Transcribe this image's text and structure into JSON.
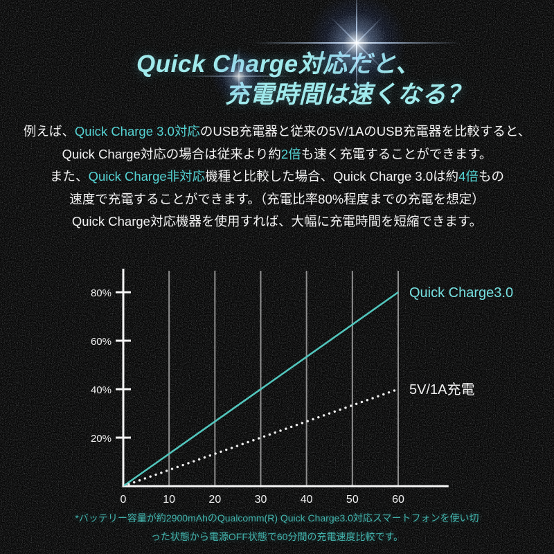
{
  "title": {
    "line1": "Quick Charge対応だと、",
    "line2": "充電時間は速くなる？",
    "color": "#a0eaec"
  },
  "body": {
    "text_color": "#f2f2f2",
    "accent_color": "#55d4d4",
    "lines": [
      [
        {
          "text": "例えば、",
          "accent": false
        },
        {
          "text": "Quick Charge 3.0対応",
          "accent": true
        },
        {
          "text": "のUSB充電器と従来の5V/1AのUSB充電器を比較すると、",
          "accent": false
        }
      ],
      [
        {
          "text": "Quick Charge対応の場合は従来より約",
          "accent": false
        },
        {
          "text": "2倍",
          "accent": true
        },
        {
          "text": "も速く充電することができます。",
          "accent": false
        }
      ],
      [
        {
          "text": "また、",
          "accent": false
        },
        {
          "text": "Quick Charge非対応",
          "accent": true
        },
        {
          "text": "機種と比較した場合、Quick Charge 3.0は約",
          "accent": false
        },
        {
          "text": "4倍",
          "accent": true
        },
        {
          "text": "もの",
          "accent": false
        }
      ],
      [
        {
          "text": "速度で充電することができます。（充電比率80%程度までの充電を想定）",
          "accent": false
        }
      ],
      [
        {
          "text": "Quick Charge対応機器を使用すれば、大幅に充電時間を短縮できます。",
          "accent": false
        }
      ]
    ]
  },
  "chart_data": {
    "type": "line",
    "title": "",
    "xlabel": "",
    "ylabel": "",
    "x_ticks": [
      0,
      10,
      20,
      30,
      40,
      50,
      60
    ],
    "y_ticks": [
      20,
      40,
      60,
      80
    ],
    "y_tick_suffix": "%",
    "xlim": [
      0,
      71
    ],
    "ylim": [
      0,
      88
    ],
    "grid": "vertical-only",
    "legend_position": "at-line-ends",
    "axis_color": "#f5f5f5",
    "grid_color": "#8f8f8f",
    "tick_label_color": "#f0f0f0",
    "series": [
      {
        "name": "Quick Charge3.0",
        "points": [
          [
            0,
            0
          ],
          [
            60,
            80
          ]
        ],
        "line_style": "solid",
        "color": "#52c6bd",
        "label_color": "#76e0e0"
      },
      {
        "name": "5V/1A充電",
        "points": [
          [
            0,
            0
          ],
          [
            60,
            40
          ]
        ],
        "line_style": "dotted",
        "color": "#ededed",
        "label_color": "#f0f0f0"
      }
    ]
  },
  "footer": {
    "color": "#43b4ad",
    "line1": "*バッテリー容量が約2900mAhのQualcomm(R) Quick Charge3.0対応スマートフォンを使い切",
    "line2": "った状態から電源OFF状態で60分間の充電速度比較です。"
  }
}
